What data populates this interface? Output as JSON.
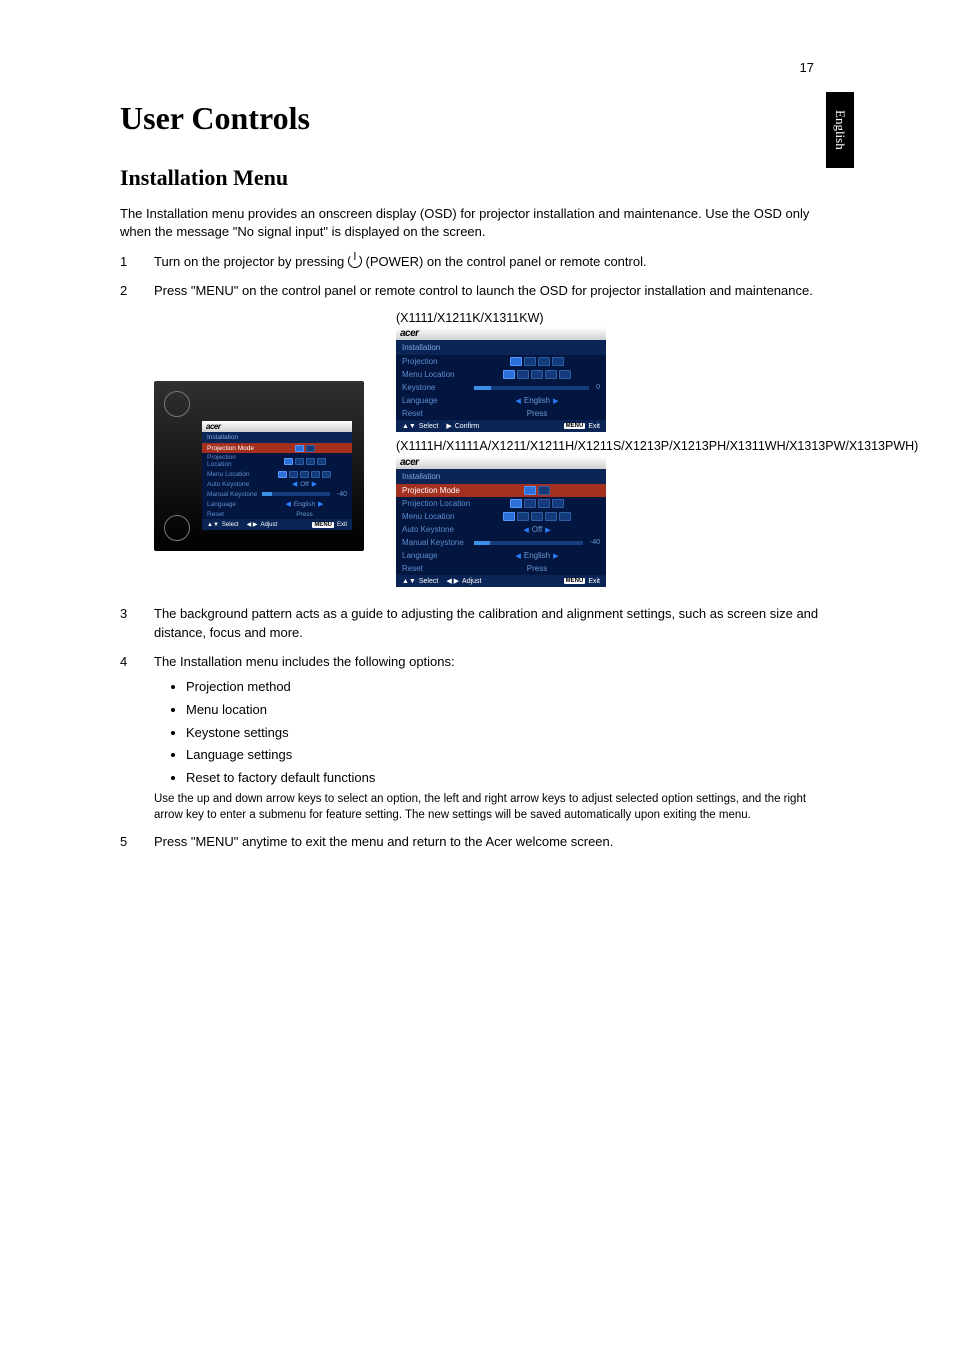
{
  "page_number": "17",
  "side_tab": "English",
  "h1": "User Controls",
  "h2": "Installation Menu",
  "intro": "The Installation menu provides an onscreen display (OSD) for projector installation and maintenance. Use the OSD only when the message \"No signal input\" is displayed on the screen.",
  "steps": {
    "s1_pre": "Turn on the projector by pressing ",
    "s1_post": " (POWER) on the control panel or remote control.",
    "s2": "Press \"MENU\" on the control panel or remote control to launch the OSD for projector installation and maintenance.",
    "s3": "The background pattern acts as a guide to adjusting the calibration and alignment settings, such as screen size and distance, focus and more.",
    "s4": "The Installation menu includes the following options:",
    "s4_bullets": [
      "Projection method",
      "Menu location",
      "Keystone settings",
      "Language settings",
      "Reset to factory default functions"
    ],
    "s4_note": "Use the up and down arrow keys to select an option, the left and right arrow keys to adjust selected option settings, and the right arrow key to enter a submenu for feature setting. The new settings will be saved automatically upon exiting the menu.",
    "s5": "Press \"MENU\" anytime to exit the menu and return to the Acer welcome screen."
  },
  "model_label_1": "(X1111/X1211K/X1311KW)",
  "model_label_2": "(X1111H/X1111A/X1211/X1211H/X1211S/X1213P/X1213PH/X1311WH/X1313PW/X1313PWH)",
  "osd": {
    "logo": "acer",
    "title": "Installation",
    "menu_key": "MENU",
    "footer_select": "Select",
    "footer_confirm": "Confirm",
    "footer_adjust": "Adjust",
    "footer_exit": "Exit",
    "arrows_ud": "▲▼",
    "arrows_lr": "◀ ▶",
    "arrow_r": "▶",
    "panel1": {
      "rows": [
        {
          "lbl": "Projection",
          "type": "icons4"
        },
        {
          "lbl": "Menu Location",
          "type": "icons5"
        },
        {
          "lbl": "Keystone",
          "type": "slider",
          "num": "0"
        },
        {
          "lbl": "Language",
          "type": "arrows",
          "val": "English"
        },
        {
          "lbl": "Reset",
          "type": "center",
          "val": "Press"
        }
      ]
    },
    "panel2": {
      "rows": [
        {
          "lbl": "Projection Mode",
          "type": "icons2",
          "hl": true
        },
        {
          "lbl": "Projection Location",
          "type": "icons4s"
        },
        {
          "lbl": "Menu Location",
          "type": "icons5"
        },
        {
          "lbl": "Auto Keystone",
          "type": "arrows",
          "val": "Off"
        },
        {
          "lbl": "Manual Keystone",
          "type": "slider",
          "num": "-40"
        },
        {
          "lbl": "Language",
          "type": "arrows",
          "val": "English"
        },
        {
          "lbl": "Reset",
          "type": "center",
          "val": "Press"
        }
      ]
    },
    "panel_mini": {
      "rows": [
        {
          "lbl": "Projection Mode",
          "type": "icons2",
          "hl": true
        },
        {
          "lbl": "Projection Location",
          "type": "icons4s"
        },
        {
          "lbl": "Menu Location",
          "type": "icons5"
        },
        {
          "lbl": "Auto Keystone",
          "type": "arrows",
          "val": "Off"
        },
        {
          "lbl": "Manual Keystone",
          "type": "slider",
          "num": "-40"
        },
        {
          "lbl": "Language",
          "type": "arrows",
          "val": "English"
        },
        {
          "lbl": "Reset",
          "type": "center",
          "val": "Press"
        }
      ]
    }
  },
  "colors": {
    "osd_bg": "#03163f",
    "osd_title_bg": "#0a2555",
    "osd_text": "#5f8cd1",
    "osd_hl": "#a43020",
    "header_grad_top": "#ffffff",
    "header_grad_bot": "#d0d0d0"
  }
}
